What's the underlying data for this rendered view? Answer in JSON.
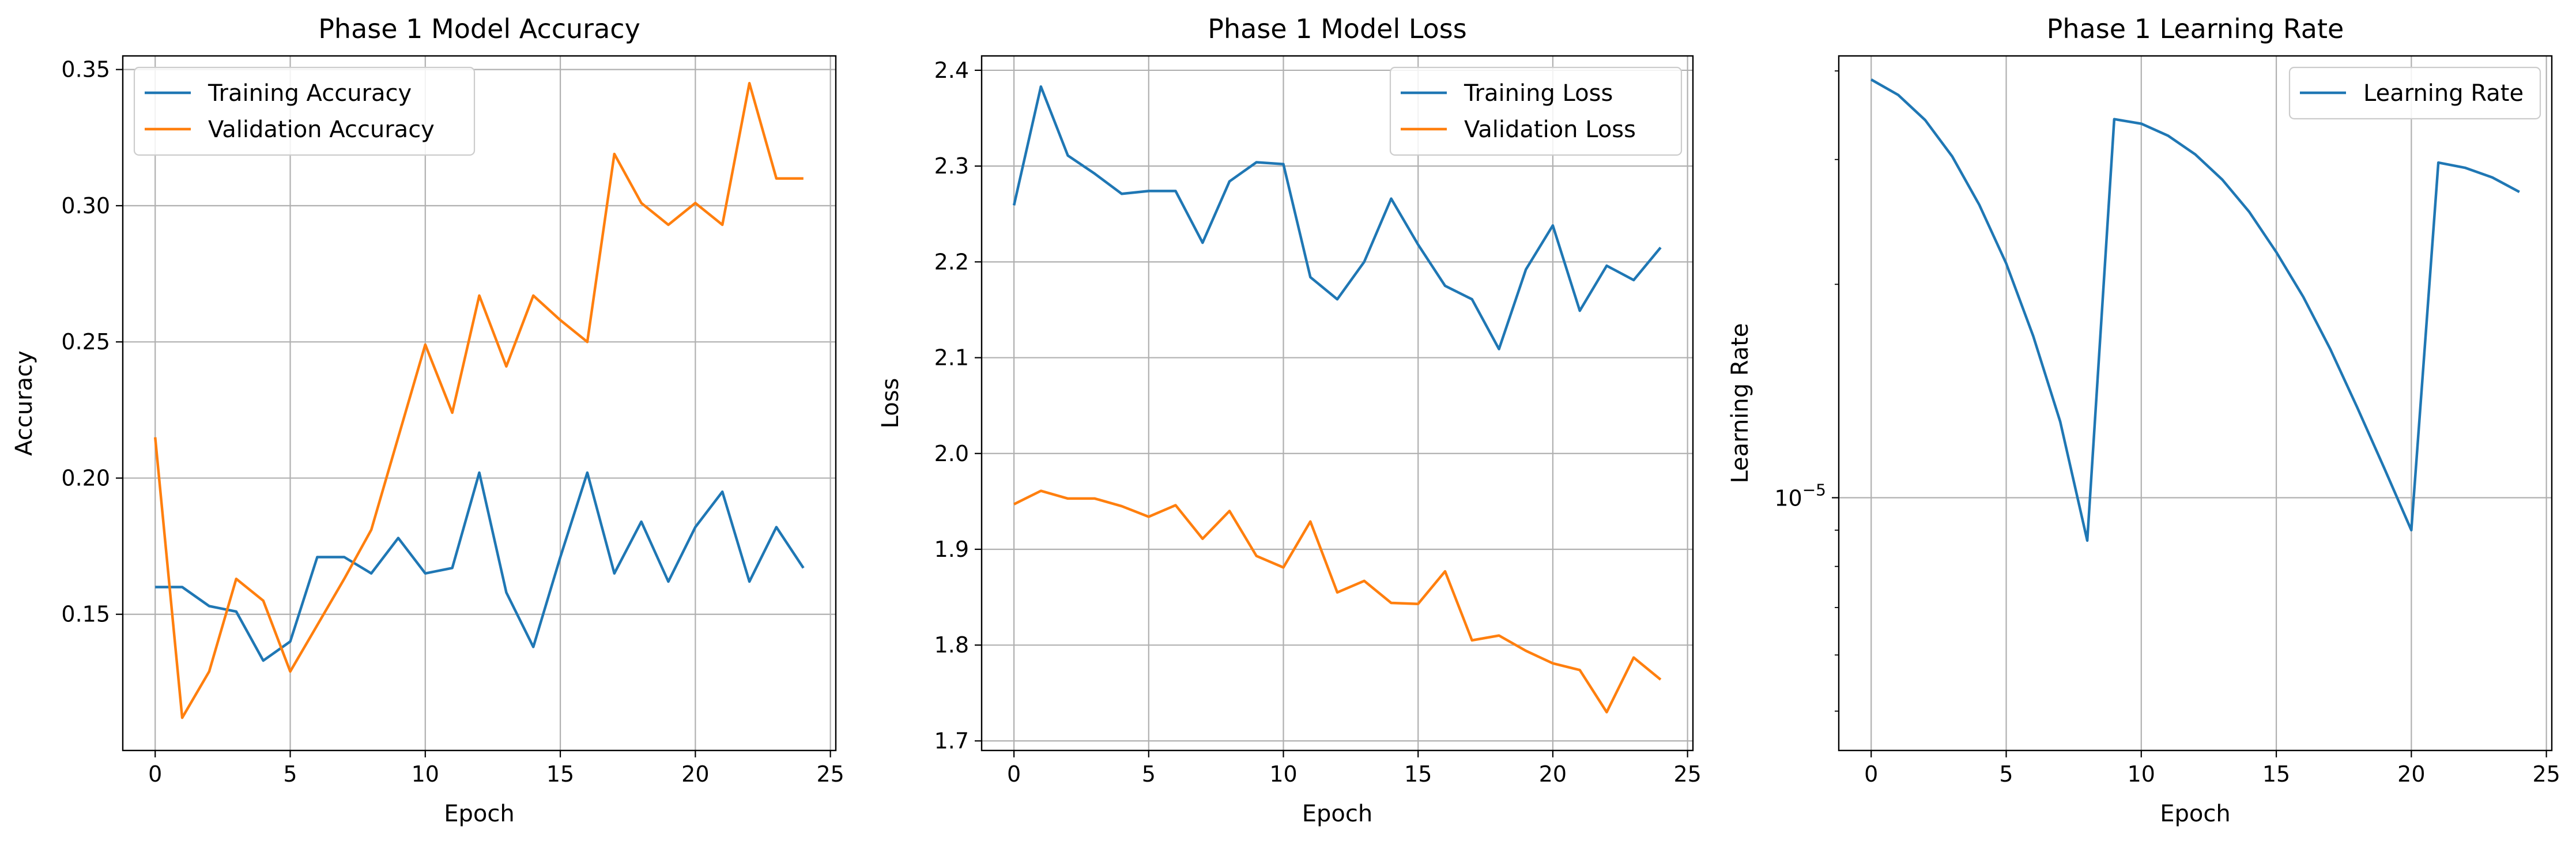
{
  "chart_data": [
    {
      "type": "line",
      "title": "Phase 1 Model Accuracy",
      "xlabel": "Epoch",
      "ylabel": "Accuracy",
      "xlim": [
        -1.2,
        25.2
      ],
      "ylim": [
        0.1,
        0.355
      ],
      "xticks": [
        0,
        5,
        10,
        15,
        20,
        25
      ],
      "xtick_labels": [
        "0",
        "5",
        "10",
        "15",
        "20",
        "25"
      ],
      "yticks": [
        0.15,
        0.2,
        0.25,
        0.3,
        0.35
      ],
      "ytick_labels": [
        "0.15",
        "0.20",
        "0.25",
        "0.30",
        "0.35"
      ],
      "grid": true,
      "legend_position": "top-left",
      "x": [
        0,
        1,
        2,
        3,
        4,
        5,
        6,
        7,
        8,
        9,
        10,
        11,
        12,
        13,
        14,
        15,
        16,
        17,
        18,
        19,
        20,
        21,
        22,
        23,
        24
      ],
      "series": [
        {
          "name": "Training Accuracy",
          "color": "#1f77b4",
          "values": [
            0.16,
            0.16,
            0.153,
            0.151,
            0.133,
            0.14,
            0.171,
            0.171,
            0.165,
            0.178,
            0.165,
            0.167,
            0.202,
            0.158,
            0.138,
            0.171,
            0.202,
            0.165,
            0.184,
            0.162,
            0.182,
            0.195,
            0.162,
            0.182,
            0.167
          ]
        },
        {
          "name": "Validation Accuracy",
          "color": "#ff7f0e",
          "values": [
            0.215,
            0.112,
            0.129,
            0.163,
            0.155,
            0.129,
            0.146,
            0.163,
            0.181,
            0.215,
            0.249,
            0.224,
            0.267,
            0.241,
            0.267,
            0.258,
            0.25,
            0.319,
            0.301,
            0.293,
            0.301,
            0.293,
            0.345,
            0.31,
            0.31
          ]
        }
      ]
    },
    {
      "type": "line",
      "title": "Phase 1 Model Loss",
      "xlabel": "Epoch",
      "ylabel": "Loss",
      "xlim": [
        -1.2,
        25.2
      ],
      "ylim": [
        1.69,
        2.415
      ],
      "xticks": [
        0,
        5,
        10,
        15,
        20,
        25
      ],
      "xtick_labels": [
        "0",
        "5",
        "10",
        "15",
        "20",
        "25"
      ],
      "yticks": [
        1.7,
        1.8,
        1.9,
        2.0,
        2.1,
        2.2,
        2.3,
        2.4
      ],
      "ytick_labels": [
        "1.7",
        "1.8",
        "1.9",
        "2.0",
        "2.1",
        "2.2",
        "2.3",
        "2.4"
      ],
      "grid": true,
      "legend_position": "top-right",
      "x": [
        0,
        1,
        2,
        3,
        4,
        5,
        6,
        7,
        8,
        9,
        10,
        11,
        12,
        13,
        14,
        15,
        16,
        17,
        18,
        19,
        20,
        21,
        22,
        23,
        24
      ],
      "series": [
        {
          "name": "Training Loss",
          "color": "#1f77b4",
          "values": [
            2.259,
            2.383,
            2.311,
            2.292,
            2.271,
            2.274,
            2.274,
            2.22,
            2.284,
            2.304,
            2.302,
            2.184,
            2.161,
            2.2,
            2.266,
            2.218,
            2.175,
            2.161,
            2.109,
            2.192,
            2.238,
            2.149,
            2.196,
            2.181,
            2.215
          ]
        },
        {
          "name": "Validation Loss",
          "color": "#ff7f0e",
          "values": [
            1.947,
            1.961,
            1.953,
            1.953,
            1.945,
            1.934,
            1.946,
            1.911,
            1.94,
            1.893,
            1.881,
            1.929,
            1.855,
            1.867,
            1.844,
            1.843,
            1.877,
            1.805,
            1.81,
            1.794,
            1.781,
            1.774,
            1.73,
            1.787,
            1.764
          ]
        }
      ]
    },
    {
      "type": "line",
      "title": "Phase 1 Learning Rate",
      "xlabel": "Epoch",
      "ylabel": "Learning Rate",
      "y_scale": "log",
      "xlim": [
        -1.2,
        25.2
      ],
      "ylim": [
        4.4e-06,
        4.2e-05
      ],
      "xticks": [
        0,
        5,
        10,
        15,
        20,
        25
      ],
      "xtick_labels": [
        "0",
        "5",
        "10",
        "15",
        "20",
        "25"
      ],
      "ytick_major_label": {
        "base": "10",
        "exponent": "−5"
      },
      "grid": true,
      "legend_position": "top-right",
      "x": [
        0,
        1,
        2,
        3,
        4,
        5,
        6,
        7,
        8,
        9,
        10,
        11,
        12,
        13,
        14,
        15,
        16,
        17,
        18,
        19,
        20,
        21,
        22,
        23,
        24
      ],
      "series": [
        {
          "name": "Learning Rate",
          "color": "#1f77b4",
          "values": [
            3.89e-05,
            3.7e-05,
            3.41e-05,
            3.03e-05,
            2.59e-05,
            2.14e-05,
            1.69e-05,
            1.28e-05,
            8.7e-06,
            3.42e-05,
            3.37e-05,
            3.24e-05,
            3.05e-05,
            2.81e-05,
            2.53e-05,
            2.22e-05,
            1.92e-05,
            1.62e-05,
            1.34e-05,
            1.1e-05,
            9e-06,
            2.97e-05,
            2.92e-05,
            2.83e-05,
            2.7e-05
          ]
        }
      ]
    }
  ]
}
